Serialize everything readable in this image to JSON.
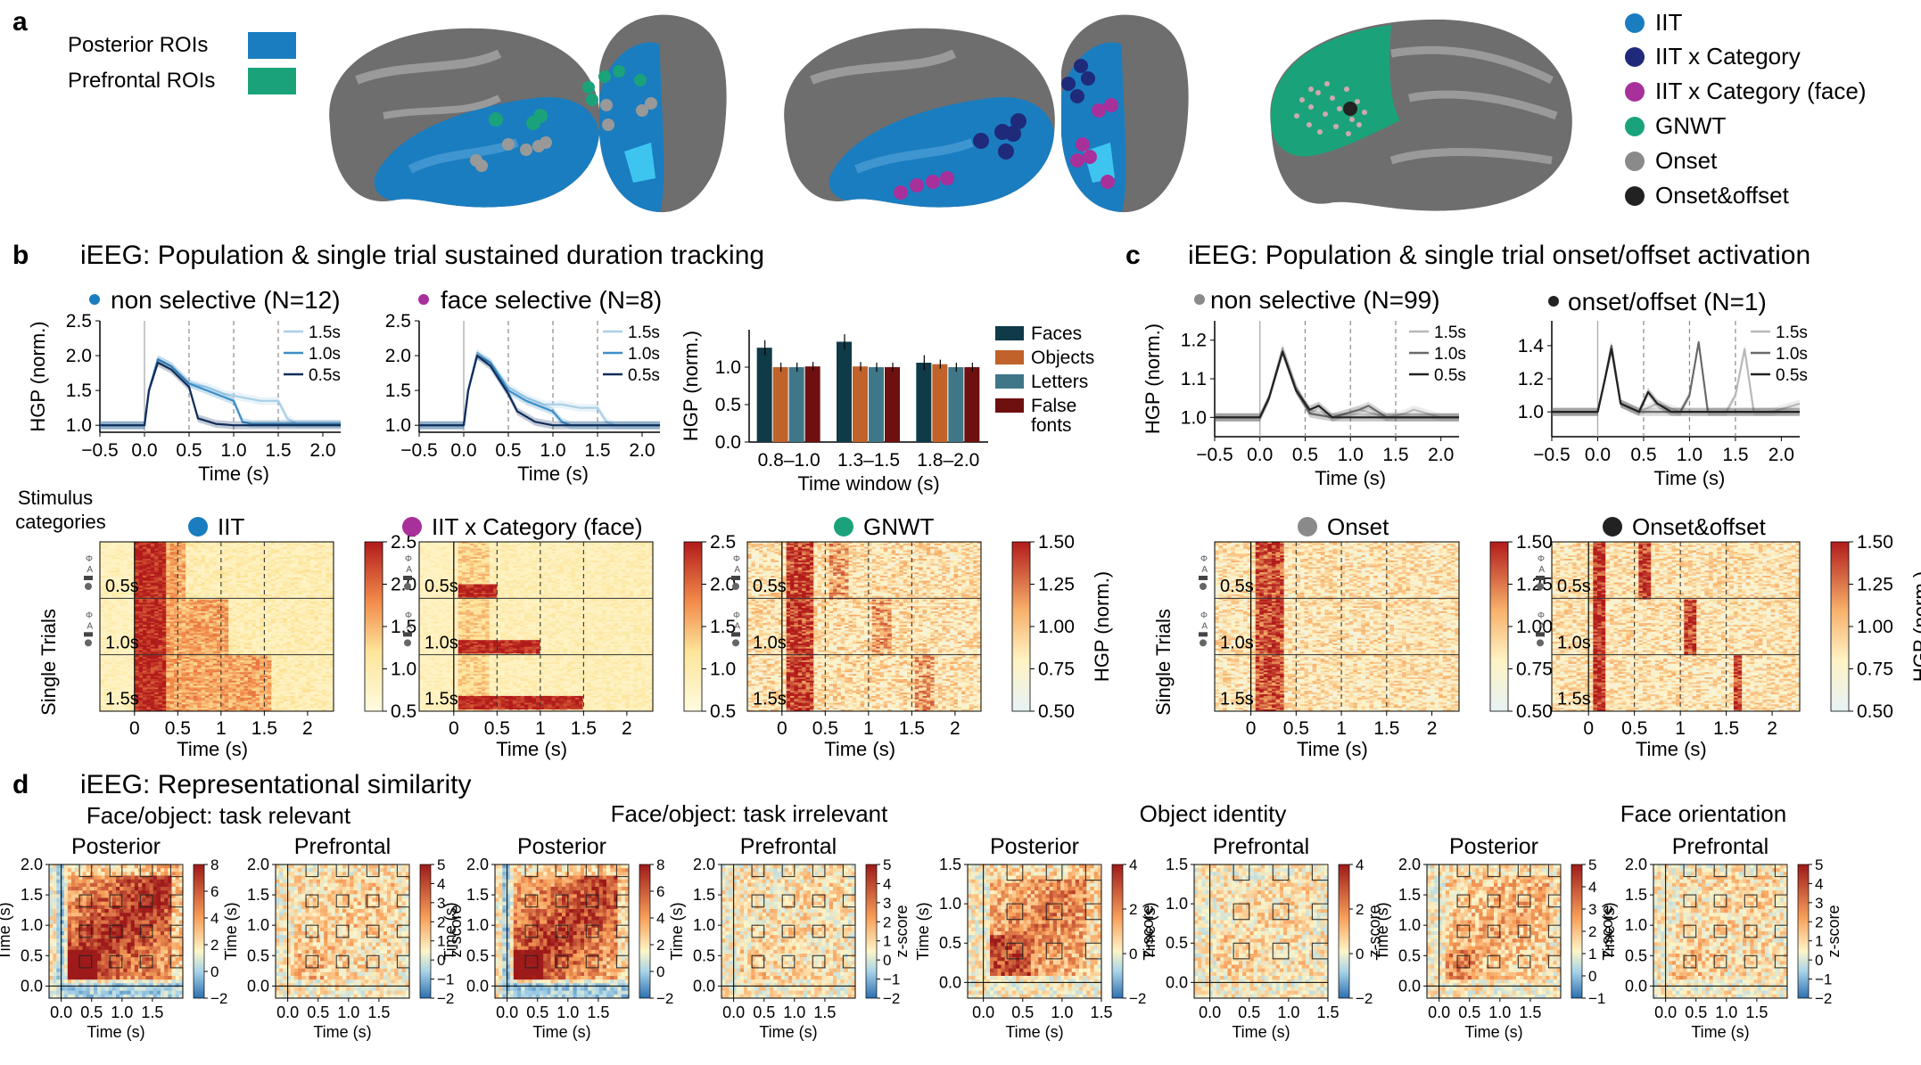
{
  "colors": {
    "posterior": "#1a7dc0",
    "prefrontal": "#1aa37a",
    "iit": "#1a7dc0",
    "iit_category": "#1f2a7a",
    "iit_category_face": "#a8309a",
    "gnwt": "#1aa37a",
    "onset": "#8a8a8a",
    "onset_offset": "#222222",
    "faces": "#0f3a48",
    "objects": "#c0622a",
    "letters": "#3f7688",
    "false_fonts": "#6e1010"
  },
  "panel_a": {
    "label": "a",
    "roi_legend": [
      {
        "label": "Posterior ROIs",
        "color": "#1a7dc0"
      },
      {
        "label": "Prefrontal ROIs",
        "color": "#1aa37a"
      }
    ],
    "theory_legend": [
      {
        "label": "IIT",
        "color": "#1a7dc0"
      },
      {
        "label": "IIT x Category",
        "color": "#1f2a7a"
      },
      {
        "label": "IIT x Category (face)",
        "color": "#a8309a"
      },
      {
        "label": "GNWT",
        "color": "#1aa37a"
      },
      {
        "label": "Onset",
        "color": "#8a8a8a"
      },
      {
        "label": "Onset&offset",
        "color": "#222222"
      }
    ]
  },
  "panel_b": {
    "label": "b",
    "title": "iEEG: Population & single trial sustained duration tracking",
    "subtitle_left": "non selective (N=12)",
    "subtitle_right": "face selective (N=8)",
    "bar_ylabel": "HGP (norm.)",
    "bar_xlabel": "Time window (s)",
    "stimulus_label": "Stimulus categories",
    "single_trials_label": "Single Trials",
    "heatmap_titles": [
      "IIT",
      "IIT x Category (face)",
      "GNWT"
    ],
    "hgp_label": "HGP (norm.)"
  },
  "panel_c": {
    "label": "c",
    "title": "iEEG: Population & single trial onset/offset activation",
    "subtitle_left": "non selective (N=99)",
    "subtitle_right": "onset/offset (N=1)",
    "single_trials_label": "Single Trials",
    "heatmap_titles": [
      "Onset",
      "Onset&offset"
    ],
    "hgp_label": "HGP (norm.)"
  },
  "panel_d": {
    "label": "d",
    "title": "iEEG: Representational similarity",
    "groups": [
      {
        "title": "Face/object: task relevant"
      },
      {
        "title": "Face/object: task irrelevant"
      },
      {
        "title": "Object identity"
      },
      {
        "title": "Face orientation"
      }
    ],
    "sub_posterior": "Posterior",
    "sub_prefrontal": "Prefrontal",
    "zscore_label": "z-score",
    "time_label": "Time (s)"
  },
  "axis_text": {
    "time": "Time (s)",
    "hgp": "HGP (norm.)",
    "dur_15": "1.5s",
    "dur_10": "1.0s",
    "dur_05": "0.5s"
  },
  "chart_data": [
    {
      "type": "line",
      "title": "non selective (N=12)",
      "xlabel": "Time (s)",
      "ylabel": "HGP (norm.)",
      "xlim": [
        -0.5,
        2.2
      ],
      "ylim": [
        0.9,
        2.5
      ],
      "xticks": [
        -0.5,
        0.0,
        0.5,
        1.0,
        1.5,
        2.0
      ],
      "yticks": [
        1.0,
        1.5,
        2.0,
        2.5
      ],
      "series": [
        {
          "name": "1.5s",
          "color": "#a9cfe8",
          "x": [
            -0.5,
            0,
            0.05,
            0.15,
            0.3,
            0.5,
            0.7,
            0.9,
            1.1,
            1.3,
            1.5,
            1.6,
            1.7,
            2.0,
            2.2
          ],
          "y": [
            1.0,
            1.0,
            1.5,
            1.95,
            1.85,
            1.6,
            1.55,
            1.45,
            1.4,
            1.35,
            1.35,
            1.1,
            1.02,
            1.02,
            1.02
          ]
        },
        {
          "name": "1.0s",
          "color": "#3d8fc8",
          "x": [
            -0.5,
            0,
            0.05,
            0.15,
            0.3,
            0.5,
            0.7,
            0.9,
            1.0,
            1.1,
            1.2,
            1.5,
            2.2
          ],
          "y": [
            1.0,
            1.0,
            1.5,
            1.95,
            1.85,
            1.6,
            1.5,
            1.4,
            1.35,
            1.05,
            1.02,
            1.02,
            1.02
          ]
        },
        {
          "name": "0.5s",
          "color": "#0f2d5a",
          "x": [
            -0.5,
            0,
            0.05,
            0.15,
            0.3,
            0.5,
            0.6,
            0.8,
            1.0,
            2.2
          ],
          "y": [
            1.0,
            1.0,
            1.5,
            1.9,
            1.8,
            1.55,
            1.1,
            1.02,
            1.0,
            1.0
          ]
        }
      ]
    },
    {
      "type": "line",
      "title": "face selective (N=8)",
      "xlabel": "Time (s)",
      "xlim": [
        -0.5,
        2.2
      ],
      "ylim": [
        0.9,
        2.5
      ],
      "xticks": [
        -0.5,
        0.0,
        0.5,
        1.0,
        1.5,
        2.0
      ],
      "yticks": [
        1.0,
        1.5,
        2.0,
        2.5
      ],
      "series": [
        {
          "name": "1.5s",
          "color": "#a9cfe8",
          "x": [
            -0.5,
            0,
            0.05,
            0.15,
            0.3,
            0.5,
            0.7,
            0.9,
            1.1,
            1.3,
            1.5,
            1.6,
            1.7,
            2.0,
            2.2
          ],
          "y": [
            1.0,
            1.0,
            1.5,
            2.05,
            1.9,
            1.55,
            1.4,
            1.3,
            1.3,
            1.25,
            1.25,
            1.05,
            1.0,
            1.0,
            1.0
          ]
        },
        {
          "name": "1.0s",
          "color": "#3d8fc8",
          "x": [
            -0.5,
            0,
            0.05,
            0.15,
            0.3,
            0.5,
            0.7,
            0.9,
            1.0,
            1.1,
            1.2,
            1.5,
            2.2
          ],
          "y": [
            1.0,
            1.0,
            1.5,
            2.0,
            1.9,
            1.5,
            1.35,
            1.25,
            1.2,
            1.05,
            1.0,
            1.0,
            1.0
          ]
        },
        {
          "name": "0.5s",
          "color": "#0f2d5a",
          "x": [
            -0.5,
            0,
            0.05,
            0.15,
            0.3,
            0.5,
            0.6,
            0.8,
            1.0,
            2.2
          ],
          "y": [
            1.0,
            1.0,
            1.5,
            2.0,
            1.85,
            1.45,
            1.2,
            1.05,
            1.0,
            1.0
          ]
        }
      ]
    },
    {
      "type": "bar",
      "ylabel": "HGP (norm.)",
      "xlabel": "Time window (s)",
      "categories": [
        "0.8–1.0",
        "1.3–1.5",
        "1.8–2.0"
      ],
      "ylim": [
        0,
        1.5
      ],
      "yticks": [
        0.0,
        0.5,
        1.0
      ],
      "series": [
        {
          "name": "Faces",
          "color": "#0f3a48",
          "values": [
            1.26,
            1.34,
            1.06
          ]
        },
        {
          "name": "Objects",
          "color": "#c0622a",
          "values": [
            1.0,
            1.01,
            1.04
          ]
        },
        {
          "name": "Letters",
          "color": "#3f7688",
          "values": [
            1.0,
            1.0,
            1.0
          ]
        },
        {
          "name": "False fonts",
          "color": "#6e1010",
          "values": [
            1.01,
            1.0,
            1.0
          ]
        }
      ],
      "legend": [
        "Faces",
        "Objects",
        "Letters",
        "False fonts"
      ]
    },
    {
      "type": "line",
      "title": "non selective (N=99)",
      "xlabel": "Time (s)",
      "ylabel": "HGP (norm.)",
      "xlim": [
        -0.5,
        2.2
      ],
      "ylim": [
        0.95,
        1.25
      ],
      "xticks": [
        -0.5,
        0.0,
        0.5,
        1.0,
        1.5,
        2.0
      ],
      "yticks": [
        1.0,
        1.1,
        1.2
      ],
      "series": [
        {
          "name": "1.5s",
          "color": "#b8b8b8",
          "x": [
            -0.5,
            0,
            0.1,
            0.25,
            0.4,
            0.55,
            0.8,
            1.1,
            1.4,
            1.6,
            1.7,
            2.0,
            2.2
          ],
          "y": [
            1.0,
            1.0,
            1.05,
            1.18,
            1.08,
            1.01,
            1.0,
            1.02,
            1.0,
            1.01,
            1.02,
            1.0,
            1.0
          ]
        },
        {
          "name": "1.0s",
          "color": "#6a6a6a",
          "x": [
            -0.5,
            0,
            0.1,
            0.25,
            0.4,
            0.55,
            0.8,
            1.1,
            1.2,
            1.4,
            2.2
          ],
          "y": [
            1.0,
            1.0,
            1.05,
            1.17,
            1.07,
            1.01,
            1.0,
            1.02,
            1.03,
            1.0,
            1.0
          ]
        },
        {
          "name": "0.5s",
          "color": "#222222",
          "x": [
            -0.5,
            0,
            0.1,
            0.25,
            0.4,
            0.55,
            0.65,
            0.8,
            2.2
          ],
          "y": [
            1.0,
            1.0,
            1.05,
            1.17,
            1.07,
            1.02,
            1.03,
            1.0,
            1.0
          ]
        }
      ]
    },
    {
      "type": "line",
      "title": "onset/offset (N=1)",
      "xlabel": "Time (s)",
      "xlim": [
        -0.5,
        2.2
      ],
      "ylim": [
        0.85,
        1.55
      ],
      "xticks": [
        -0.5,
        0.0,
        0.5,
        1.0,
        1.5,
        2.0
      ],
      "yticks": [
        1.0,
        1.2,
        1.4
      ],
      "series": [
        {
          "name": "1.5s",
          "color": "#b8b8b8",
          "x": [
            -0.5,
            0,
            0.08,
            0.15,
            0.25,
            0.45,
            0.65,
            0.9,
            1.4,
            1.5,
            1.6,
            1.7,
            1.9,
            2.2
          ],
          "y": [
            1.0,
            1.0,
            1.2,
            1.4,
            1.05,
            1.0,
            1.05,
            1.0,
            1.0,
            1.1,
            1.38,
            1.0,
            1.0,
            1.05
          ]
        },
        {
          "name": "1.0s",
          "color": "#6a6a6a",
          "x": [
            -0.5,
            0,
            0.08,
            0.15,
            0.25,
            0.45,
            0.9,
            1.0,
            1.1,
            1.2,
            1.3,
            2.2
          ],
          "y": [
            1.0,
            1.0,
            1.2,
            1.4,
            1.05,
            1.0,
            1.0,
            1.1,
            1.42,
            1.0,
            1.0,
            1.0
          ]
        },
        {
          "name": "0.5s",
          "color": "#222222",
          "x": [
            -0.5,
            0,
            0.08,
            0.15,
            0.25,
            0.45,
            0.55,
            0.65,
            0.8,
            2.2
          ],
          "y": [
            1.0,
            1.0,
            1.2,
            1.38,
            1.05,
            1.0,
            1.12,
            1.05,
            1.0,
            1.0
          ]
        }
      ]
    },
    {
      "type": "heatmap",
      "title": "IIT",
      "ylabel": "Single Trials",
      "xlabel": "Time (s)",
      "xticks": [
        0,
        0.5,
        1,
        1.5,
        2
      ],
      "rows": [
        "0.5s",
        "1.0s",
        "1.5s"
      ],
      "colorbar_ticks": [
        0.5,
        1.0,
        1.5,
        2.0,
        2.5
      ]
    },
    {
      "type": "heatmap",
      "title": "IIT x Category (face)",
      "xlabel": "Time (s)",
      "xticks": [
        0,
        0.5,
        1,
        1.5,
        2
      ],
      "rows": [
        "0.5s",
        "1.0s",
        "1.5s"
      ],
      "colorbar_ticks": [
        0.5,
        1.0,
        1.5,
        2.0,
        2.5
      ]
    },
    {
      "type": "heatmap",
      "title": "GNWT",
      "xlabel": "Time (s)",
      "xticks": [
        0,
        0.5,
        1,
        1.5,
        2
      ],
      "rows": [
        "0.5s",
        "1.0s",
        "1.5s"
      ],
      "colorbar_label": "HGP (norm.)",
      "colorbar_ticks": [
        0.5,
        0.75,
        1.0,
        1.25,
        1.5
      ]
    },
    {
      "type": "heatmap",
      "title": "Onset",
      "ylabel": "Single Trials",
      "xlabel": "Time (s)",
      "xticks": [
        0,
        0.5,
        1,
        1.5,
        2
      ],
      "rows": [
        "0.5s",
        "1.0s",
        "1.5s"
      ],
      "colorbar_ticks": [
        0.5,
        0.75,
        1.0,
        1.25,
        1.5
      ]
    },
    {
      "type": "heatmap",
      "title": "Onset&offset",
      "xlabel": "Time (s)",
      "xticks": [
        0,
        0.5,
        1,
        1.5,
        2
      ],
      "rows": [
        "0.5s",
        "1.0s",
        "1.5s"
      ],
      "colorbar_label": "HGP (norm.)",
      "colorbar_ticks": [
        0.5,
        0.75,
        1.0,
        1.25,
        1.5
      ]
    },
    {
      "type": "heatmap",
      "title": "Face/object: task relevant",
      "panels": [
        {
          "name": "Posterior",
          "xlim": [
            -0.2,
            2.0
          ],
          "ylim": [
            -0.2,
            2.0
          ],
          "xticks": [
            0.0,
            0.5,
            1.0,
            1.5
          ],
          "yticks": [
            0.0,
            0.5,
            1.0,
            1.5,
            2.0
          ],
          "colorbar_ticks": [
            -2,
            0,
            2,
            4,
            6,
            8
          ]
        },
        {
          "name": "Prefrontal",
          "xlim": [
            -0.2,
            2.0
          ],
          "ylim": [
            -0.2,
            2.0
          ],
          "xticks": [
            0.0,
            0.5,
            1.0,
            1.5
          ],
          "yticks": [
            0.0,
            0.5,
            1.0,
            1.5,
            2.0
          ],
          "colorbar_ticks": [
            -2,
            -1,
            0,
            1,
            2,
            3,
            4,
            5
          ]
        }
      ]
    },
    {
      "type": "heatmap",
      "title": "Face/object: task irrelevant",
      "panels": [
        {
          "name": "Posterior",
          "xlim": [
            -0.2,
            2.0
          ],
          "ylim": [
            -0.2,
            2.0
          ],
          "xticks": [
            0.0,
            0.5,
            1.0,
            1.5
          ],
          "yticks": [
            0.0,
            0.5,
            1.0,
            1.5,
            2.0
          ],
          "colorbar_ticks": [
            -2,
            0,
            2,
            4,
            6,
            8
          ]
        },
        {
          "name": "Prefrontal",
          "xlim": [
            -0.2,
            2.0
          ],
          "ylim": [
            -0.2,
            2.0
          ],
          "xticks": [
            0.0,
            0.5,
            1.0,
            1.5
          ],
          "yticks": [
            0.0,
            0.5,
            1.0,
            1.5,
            2.0
          ],
          "colorbar_ticks": [
            -2,
            -1,
            0,
            1,
            2,
            3,
            4,
            5
          ]
        }
      ]
    },
    {
      "type": "heatmap",
      "title": "Object identity",
      "panels": [
        {
          "name": "Posterior",
          "xlim": [
            -0.2,
            1.5
          ],
          "ylim": [
            -0.2,
            1.5
          ],
          "xticks": [
            0.0,
            0.5,
            1.0,
            1.5
          ],
          "yticks": [
            0.0,
            0.5,
            1.0,
            1.5
          ],
          "colorbar_ticks": [
            -2,
            0,
            2,
            4
          ]
        },
        {
          "name": "Prefrontal",
          "xlim": [
            -0.2,
            1.5
          ],
          "ylim": [
            -0.2,
            1.5
          ],
          "xticks": [
            0.0,
            0.5,
            1.0,
            1.5
          ],
          "yticks": [
            0.0,
            0.5,
            1.0,
            1.5
          ],
          "colorbar_ticks": [
            -2,
            0,
            2,
            4
          ]
        }
      ]
    },
    {
      "type": "heatmap",
      "title": "Face orientation",
      "panels": [
        {
          "name": "Posterior",
          "xlim": [
            -0.2,
            2.0
          ],
          "ylim": [
            -0.2,
            2.0
          ],
          "xticks": [
            0.0,
            0.5,
            1.0,
            1.5
          ],
          "yticks": [
            0.0,
            0.5,
            1.0,
            1.5,
            2.0
          ],
          "colorbar_ticks": [
            -1,
            0,
            1,
            2,
            3,
            4,
            5
          ]
        },
        {
          "name": "Prefrontal",
          "xlim": [
            -0.2,
            2.0
          ],
          "ylim": [
            -0.2,
            2.0
          ],
          "xticks": [
            0.0,
            0.5,
            1.0,
            1.5
          ],
          "yticks": [
            0.0,
            0.5,
            1.0,
            1.5,
            2.0
          ],
          "colorbar_ticks": [
            -2,
            -1,
            0,
            1,
            2,
            3,
            4,
            5
          ]
        }
      ]
    }
  ]
}
